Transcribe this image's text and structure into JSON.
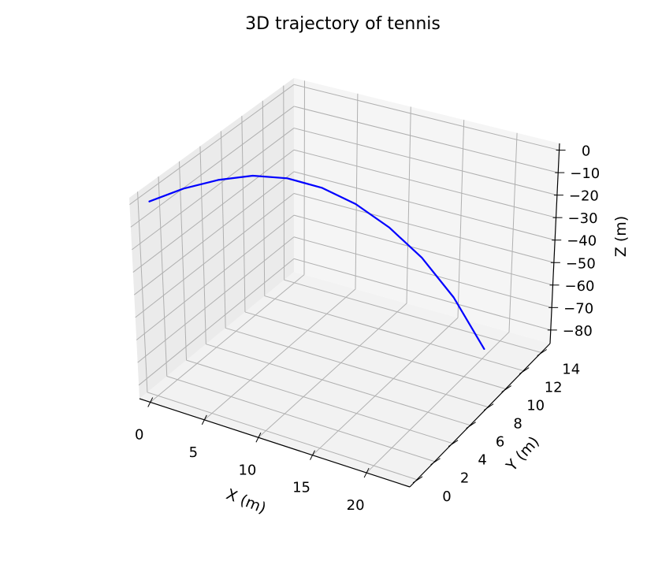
{
  "chart_data": {
    "type": "line",
    "projection": "3d",
    "title": "3D trajectory of tennis",
    "xlabel": "X (m)",
    "ylabel": "Y (m)",
    "zlabel": "Z (m)",
    "xlim": [
      -1,
      24
    ],
    "ylim": [
      -0.8,
      15
    ],
    "zlim": [
      -86,
      3
    ],
    "grid": true,
    "x_ticks": [
      0,
      5,
      10,
      15,
      20
    ],
    "y_ticks": [
      0,
      2,
      4,
      6,
      8,
      10,
      12,
      14
    ],
    "z_ticks": [
      0,
      -10,
      -20,
      -30,
      -40,
      -50,
      -60,
      -70,
      -80
    ],
    "series": [
      {
        "color": "#0000ff",
        "x": [
          0,
          2.5,
          5,
          7.5,
          10,
          12.5,
          15,
          17.5,
          20,
          22.5,
          25
        ],
        "y": [
          0,
          0.6,
          1.2,
          1.8,
          2.4,
          3.0,
          3.6,
          4.2,
          4.8,
          5.4,
          6.0
        ],
        "z": [
          0,
          7,
          12,
          15,
          15,
          12,
          6,
          -3,
          -15,
          -31,
          -52
        ]
      }
    ]
  }
}
